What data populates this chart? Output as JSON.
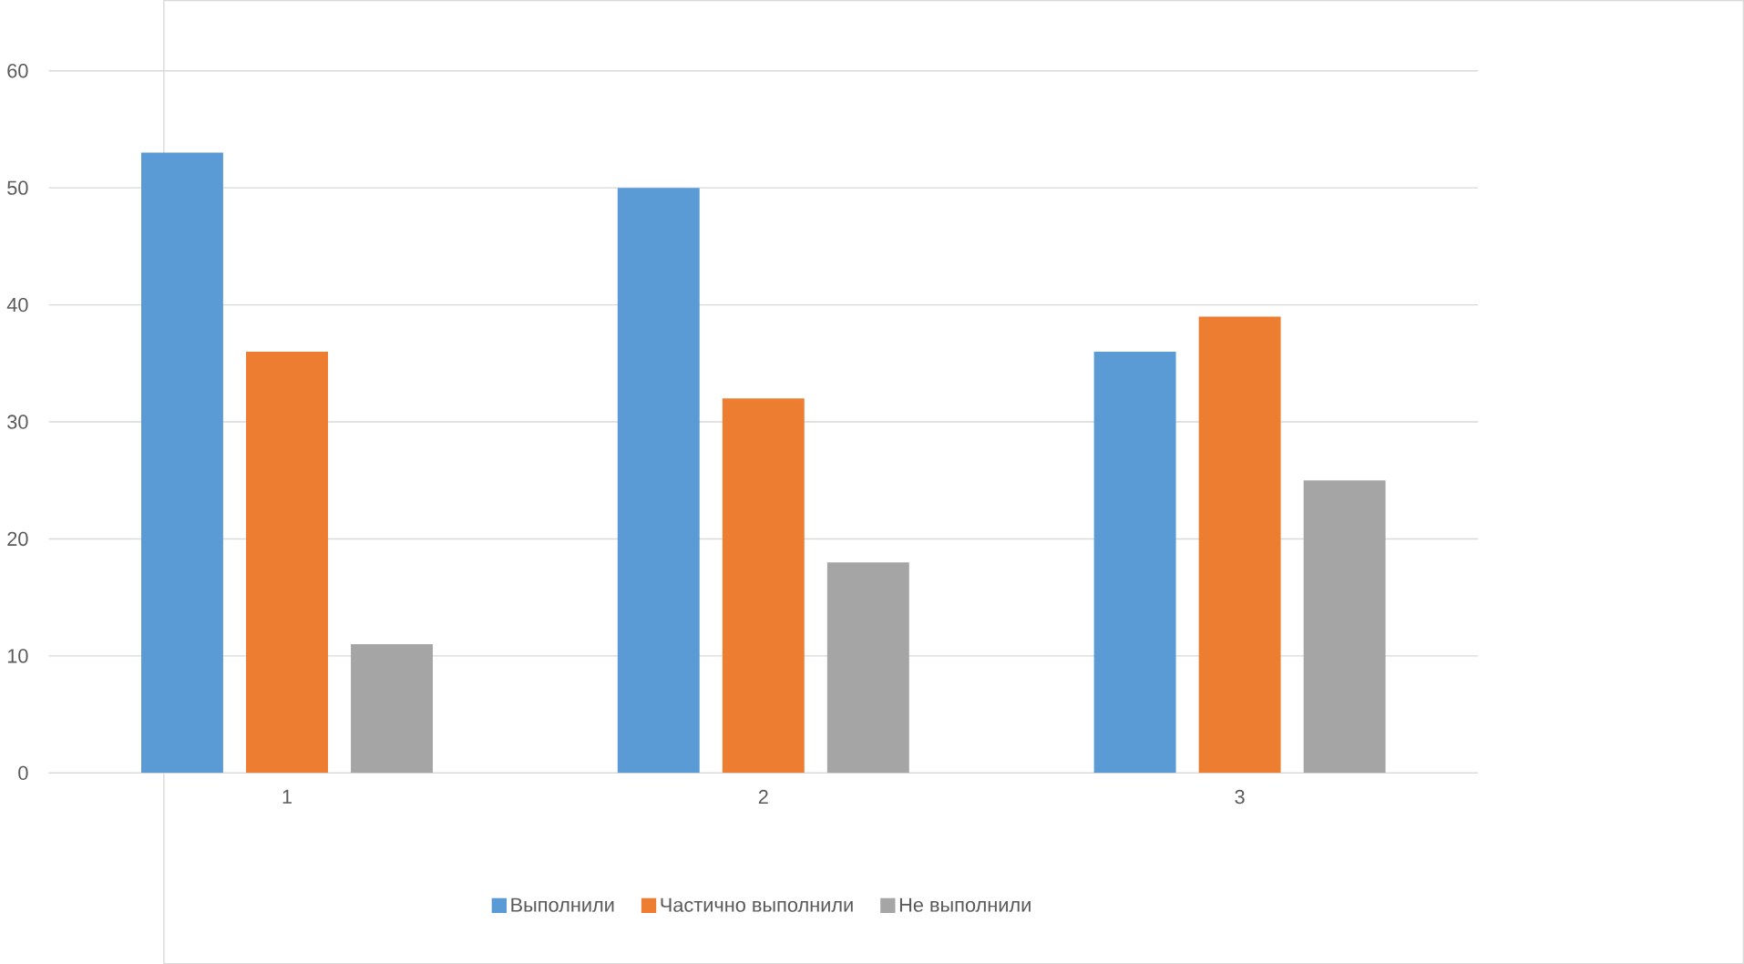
{
  "chart_data": {
    "type": "bar",
    "categories": [
      "1",
      "2",
      "3"
    ],
    "series": [
      {
        "name": "Выполнили",
        "color": "#5b9bd5",
        "values": [
          53,
          50,
          36
        ]
      },
      {
        "name": "Частично выполнили",
        "color": "#ed7d31",
        "values": [
          36,
          32,
          39
        ]
      },
      {
        "name": "Не выполнили",
        "color": "#a5a5a5",
        "values": [
          11,
          18,
          25
        ]
      }
    ],
    "ylim": [
      0,
      60
    ],
    "yticks": [
      0,
      10,
      20,
      30,
      40,
      50,
      60
    ],
    "grid": "y",
    "legend": "bottom"
  }
}
